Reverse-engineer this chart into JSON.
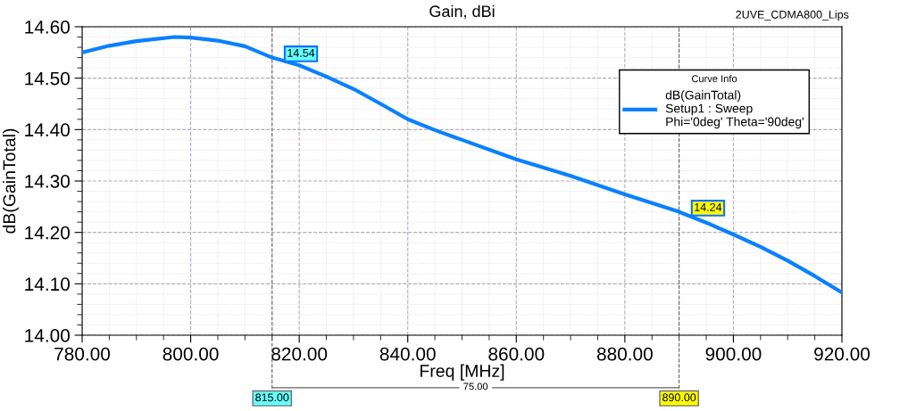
{
  "chart_data": {
    "type": "line",
    "title": "Gain, dBi",
    "xlabel": "Freq [MHz]",
    "ylabel": "dB(GainTotal)",
    "legend_title": "Curve Info",
    "x": [
      780,
      785,
      790,
      797,
      800,
      805,
      810,
      815,
      820,
      825,
      830,
      835,
      840,
      845,
      850,
      860,
      870,
      880,
      890,
      895,
      900,
      905,
      910,
      915,
      920
    ],
    "series": [
      {
        "name": "dB(GainTotal)\nSetup1 : Sweep\nPhi='0deg' Theta='90deg'",
        "color": "#0a80ff",
        "values": [
          14.55,
          14.563,
          14.572,
          14.58,
          14.579,
          14.573,
          14.562,
          14.54,
          14.525,
          14.503,
          14.479,
          14.45,
          14.42,
          14.399,
          14.38,
          14.342,
          14.31,
          14.274,
          14.24,
          14.219,
          14.196,
          14.172,
          14.145,
          14.115,
          14.083
        ]
      }
    ],
    "xlim": [
      780,
      920
    ],
    "xticks": [
      {
        "value": 780,
        "label": "780.00"
      },
      {
        "value": 800,
        "label": "800.00"
      },
      {
        "value": 820,
        "label": "820.00"
      },
      {
        "value": 840,
        "label": "840.00"
      },
      {
        "value": 860,
        "label": "860.00"
      },
      {
        "value": 880,
        "label": "880.00"
      },
      {
        "value": 900,
        "label": "900.00"
      },
      {
        "value": 920,
        "label": "920.00"
      }
    ],
    "ylim": [
      14.0,
      14.6
    ],
    "yticks": [
      {
        "value": 14.0,
        "label": "14.00"
      },
      {
        "value": 14.1,
        "label": "14.10"
      },
      {
        "value": 14.2,
        "label": "14.20"
      },
      {
        "value": 14.3,
        "label": "14.30"
      },
      {
        "value": 14.4,
        "label": "14.40"
      },
      {
        "value": 14.5,
        "label": "14.50"
      },
      {
        "value": 14.6,
        "label": "14.60"
      }
    ],
    "ref_lines": [
      {
        "axis": "x",
        "value": 815,
        "label": "815.00",
        "color": "#606060",
        "line_style": "dashed"
      },
      {
        "axis": "x",
        "value": 890,
        "label": "890.00",
        "color": "#606060",
        "line_style": "dashed"
      }
    ],
    "annotations": [
      {
        "text": "14.54",
        "x": 815,
        "y": 14.54
      },
      {
        "text": "14.24",
        "x": 890,
        "y": 14.24
      },
      "75.00",
      "2UVE_CDMA800_Lips"
    ],
    "grid": true,
    "legend": "top right",
    "line_style": "solid",
    "marker": "none"
  }
}
